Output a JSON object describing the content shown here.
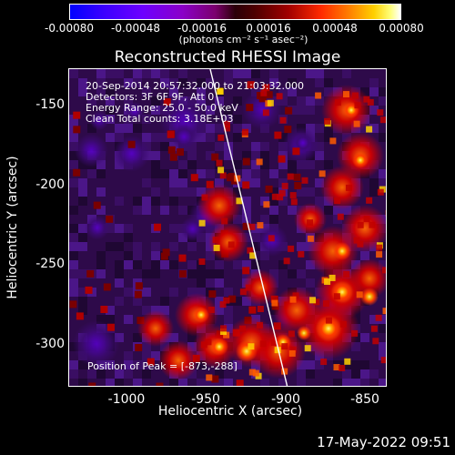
{
  "colorbar": {
    "ticks": [
      "-0.00080",
      "-0.00048",
      "-0.00016",
      "0.00016",
      "0.00048",
      "0.00080"
    ],
    "units": "(photons cm⁻² s⁻¹ asec⁻²)"
  },
  "title": "Reconstructed RHESSI Image",
  "annotations": {
    "time_range": "20-Sep-2014 20:57:32.000 to 21:03:32.000",
    "detectors": "Detectors: 3F 6F 9F, Att 0",
    "energy": "Energy Range: 25.0 - 50.0 keV",
    "clean": "Clean     Total counts: 3.18E+03"
  },
  "peak": "Position of Peak = [-873,-288]",
  "axes": {
    "x_label": "Heliocentric X (arcsec)",
    "y_label": "Heliocentric Y (arcsec)",
    "x_ticks": [
      "-1000",
      "-950",
      "-900",
      "-850"
    ],
    "y_ticks": [
      "-150",
      "-200",
      "-250",
      "-300"
    ]
  },
  "footer_timestamp": "17-May-2022 09:51"
}
